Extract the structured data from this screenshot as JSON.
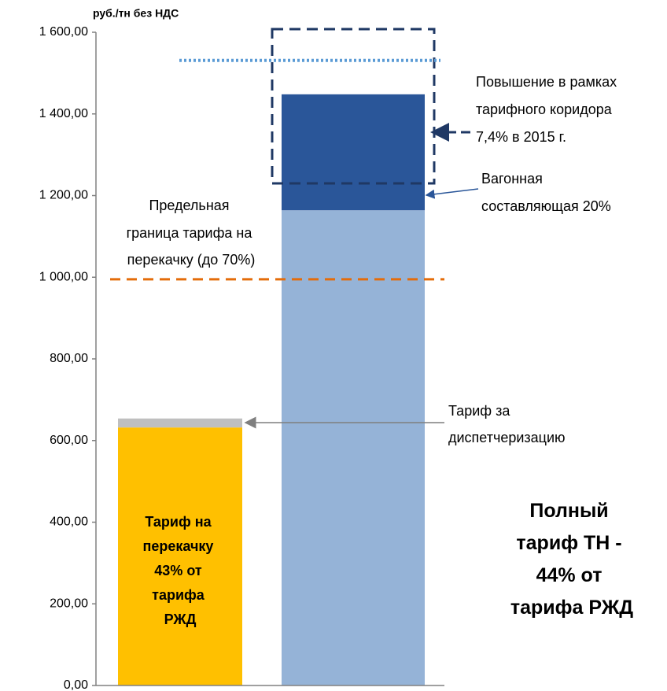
{
  "chart_data": {
    "type": "stacked_bar",
    "y_axis_label": "руб./тн без НДС",
    "categories": [
      null,
      null
    ],
    "series": [
      {
        "values": [
          632,
          1164
        ],
        "colors": [
          "#ffc000",
          "#95b3d7"
        ]
      },
      {
        "values": [
          22,
          284
        ],
        "colors": [
          "#bfbfbf",
          "#2a5699"
        ]
      }
    ],
    "reference_lines": [
      {
        "value": 1531,
        "color": "#5b9bd5",
        "style": "dotted"
      },
      {
        "value": 995,
        "color": "#e46c0a",
        "style": "dashed"
      }
    ],
    "ylim": [
      0,
      1610
    ],
    "yticks": [
      {
        "value": 0,
        "label": "0,00"
      },
      {
        "value": 200,
        "label": "200,00"
      },
      {
        "value": 400,
        "label": "400,00"
      },
      {
        "value": 600,
        "label": "600,00"
      },
      {
        "value": 800,
        "label": "800,00"
      },
      {
        "value": 1000,
        "label": "1 000,00"
      },
      {
        "value": 1200,
        "label": "1 200,00"
      },
      {
        "value": 1400,
        "label": "1 400,00"
      },
      {
        "value": 1600,
        "label": "1 600,00"
      }
    ],
    "grid": false,
    "annotations": {
      "increase": [
        "Повышение в рамках",
        "тарифного коридора",
        "7,4% в 2015 г."
      ],
      "wagon": [
        "Вагонная",
        "составляющая 20%"
      ],
      "limit": [
        "Предельная",
        "граница тарифа на",
        "перекачку (до 70%)"
      ],
      "dispatch": [
        "Тариф за",
        "диспетчеризацию"
      ],
      "bar_label": [
        "Тариф на",
        "перекачку",
        "43% от",
        "тарифа",
        "РЖД"
      ],
      "full": [
        "Полный",
        "тариф ТН -",
        "44% от",
        "тарифа РЖД"
      ]
    }
  }
}
